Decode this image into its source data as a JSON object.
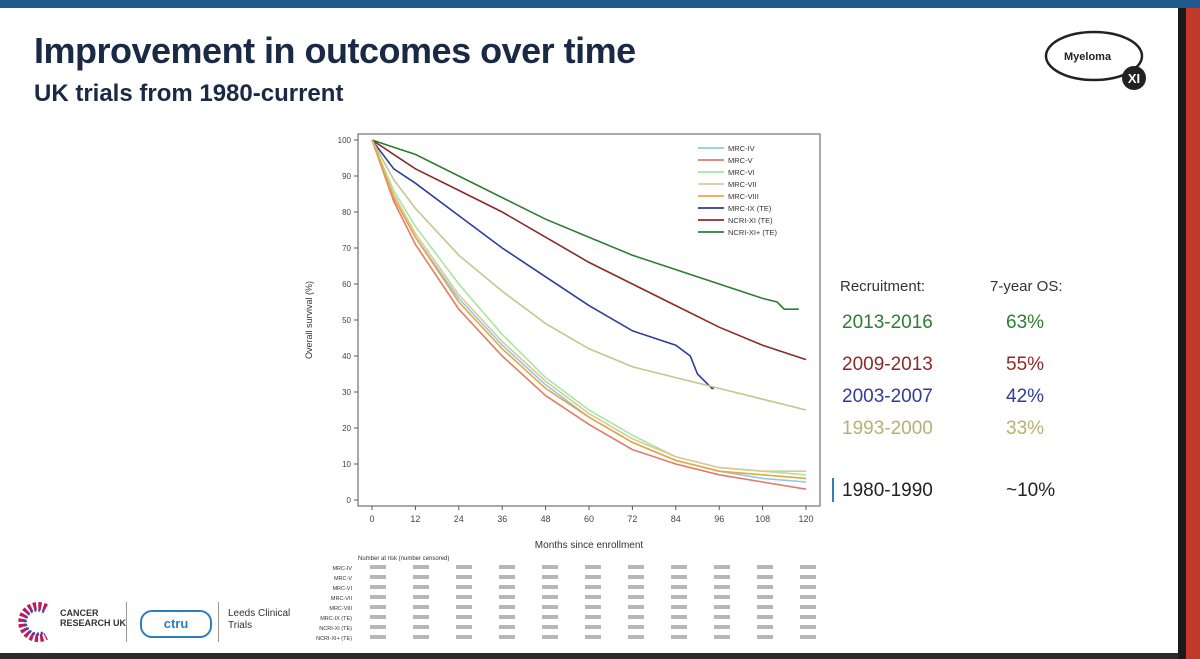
{
  "slide": {
    "title": "Improvement in outcomes over time",
    "subtitle": "UK trials from 1980-current"
  },
  "logo": {
    "line1": "Myeloma",
    "line2": "XI"
  },
  "chart_data": {
    "type": "line",
    "xlabel": "Months since enrollment",
    "ylabel": "Overall survival (%)",
    "xlim": [
      0,
      120
    ],
    "ylim": [
      0,
      100
    ],
    "xticks": [
      0,
      12,
      24,
      36,
      48,
      60,
      72,
      84,
      96,
      108,
      120
    ],
    "yticks": [
      0,
      10,
      20,
      30,
      40,
      50,
      60,
      70,
      80,
      90,
      100
    ],
    "series": [
      {
        "name": "MRC-IV",
        "color": "#8ecae6",
        "x": [
          0,
          6,
          12,
          24,
          36,
          48,
          60,
          72,
          84,
          96,
          108,
          120
        ],
        "y": [
          100,
          84,
          73,
          56,
          43,
          32,
          23,
          16,
          11,
          8,
          6,
          5
        ]
      },
      {
        "name": "MRC-V",
        "color": "#e07b6a",
        "x": [
          0,
          6,
          12,
          24,
          36,
          48,
          60,
          72,
          84,
          96,
          108,
          120
        ],
        "y": [
          100,
          83,
          71,
          53,
          40,
          29,
          21,
          14,
          10,
          7,
          5,
          3
        ]
      },
      {
        "name": "MRC-VI",
        "color": "#a8e6a1",
        "x": [
          0,
          6,
          12,
          24,
          36,
          48,
          60,
          72,
          84,
          96,
          108,
          120
        ],
        "y": [
          100,
          86,
          76,
          60,
          46,
          34,
          25,
          18,
          12,
          9,
          8,
          7
        ]
      },
      {
        "name": "MRC-VII",
        "color": "#d9c89a",
        "x": [
          0,
          6,
          12,
          24,
          36,
          48,
          60,
          72,
          84,
          96,
          108,
          120
        ],
        "y": [
          100,
          85,
          74,
          57,
          44,
          33,
          24,
          17,
          12,
          9,
          8,
          8
        ]
      },
      {
        "name": "MRC-VIII",
        "color": "#e8a640",
        "x": [
          0,
          6,
          12,
          24,
          36,
          48,
          60,
          72,
          84,
          96,
          108,
          120
        ],
        "y": [
          100,
          84,
          73,
          55,
          42,
          31,
          23,
          16,
          11,
          8,
          7,
          6
        ]
      },
      {
        "name": "MRC-IX (TE)",
        "color": "#2e3d99",
        "x": [
          0,
          6,
          12,
          24,
          36,
          48,
          60,
          72,
          84,
          88,
          90,
          92,
          94,
          94.5
        ],
        "y": [
          100,
          92,
          88,
          79,
          70,
          62,
          54,
          47,
          43,
          40,
          35,
          33,
          31,
          31
        ]
      },
      {
        "name": "NCRI-XI (TE)",
        "color": "#8b2a2a",
        "x": [
          0,
          6,
          12,
          24,
          36,
          48,
          60,
          72,
          84,
          96,
          108,
          120
        ],
        "y": [
          100,
          96,
          92,
          86,
          80,
          73,
          66,
          60,
          54,
          48,
          43,
          39
        ]
      },
      {
        "name": "NCRI-XI+ (TE)",
        "color": "#2e7d32",
        "x": [
          0,
          6,
          12,
          24,
          36,
          48,
          60,
          72,
          84,
          96,
          108,
          112,
          114,
          118
        ],
        "y": [
          100,
          98,
          96,
          90,
          84,
          78,
          73,
          68,
          64,
          60,
          56,
          55,
          53,
          53
        ]
      },
      {
        "name": "1993-2000 curve",
        "color": "#c9c48a",
        "x": [
          0,
          6,
          12,
          24,
          36,
          48,
          60,
          72,
          84,
          96,
          108,
          120
        ],
        "y": [
          100,
          89,
          81,
          68,
          58,
          49,
          42,
          37,
          34,
          31,
          28,
          25
        ]
      }
    ],
    "legend": [
      "MRC-IV",
      "MRC-V",
      "MRC-VI",
      "MRC-VII",
      "MRC-VIII",
      "MRC-IX (TE)",
      "NCRI-XI (TE)",
      "NCRI-XI+ (TE)"
    ],
    "legend_position": "top-right"
  },
  "recruitment_table": {
    "header_recruitment": "Recruitment:",
    "header_os": "7-year OS:",
    "rows": [
      {
        "period": "2013-2016",
        "os": "63%",
        "color": "#2e7d32"
      },
      {
        "period": "2009-2013",
        "os": "55%",
        "color": "#8b2a2a"
      },
      {
        "period": "2003-2007",
        "os": "42%",
        "color": "#2e3d99"
      },
      {
        "period": "1993-2000",
        "os": "33%",
        "color": "#b8b070"
      },
      {
        "period": "1980-1990",
        "os": "~10%",
        "color": "#222222"
      }
    ]
  },
  "risk_table": {
    "title": "Number at risk (number censored)",
    "labels": [
      "MRC-IV",
      "MRC-V",
      "MRC-VI",
      "MRC-VII",
      "MRC-VIII",
      "MRC-IX (TE)",
      "NCRI-XI (TE)",
      "NCRI-XI+ (TE)"
    ]
  },
  "footer": {
    "cancer_research": "CANCER RESEARCH UK",
    "ctru": "ctru",
    "leeds": "Leeds Clinical Trials"
  }
}
